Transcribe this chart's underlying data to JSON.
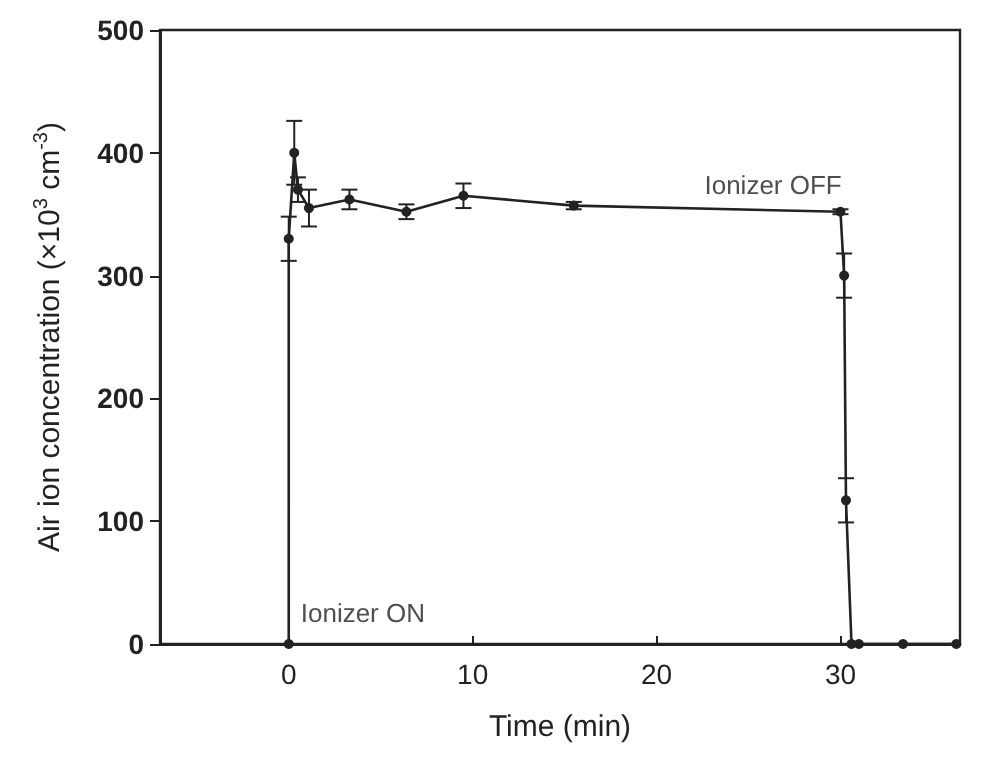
{
  "chart_data": {
    "type": "line",
    "xlabel": "Time (min)",
    "ylabel": "Air ion concentration (×10$^{3}$ cm$^{-3}$)",
    "series": [
      {
        "color": "#222222",
        "x": [
          0,
          0,
          0.3,
          0.5,
          1.1,
          3.3,
          6.4,
          9.5,
          15.5,
          30,
          30.2,
          30.3,
          30.6,
          31,
          33.4,
          36.3
        ],
        "values": [
          0,
          330,
          400,
          370,
          355,
          362,
          352,
          365,
          357,
          352,
          300,
          117,
          0,
          0,
          0,
          0
        ],
        "errors": [
          null,
          18,
          26,
          10,
          15,
          8,
          6,
          10,
          3,
          2,
          18,
          18,
          null,
          null,
          null,
          null
        ]
      }
    ],
    "xlim": [
      -7,
      36.5
    ],
    "ylim": [
      0,
      500
    ],
    "xticks": [
      0,
      10,
      20,
      30
    ],
    "yticks": [
      0,
      100,
      200,
      300,
      400,
      500
    ],
    "grid": false,
    "marker": "circle",
    "line_style": "solid",
    "annotations": [
      {
        "text": "Ionizer ON",
        "x": 0,
        "y": 0
      },
      {
        "text": "Ionizer OFF",
        "x": 30,
        "y": 352
      }
    ]
  }
}
